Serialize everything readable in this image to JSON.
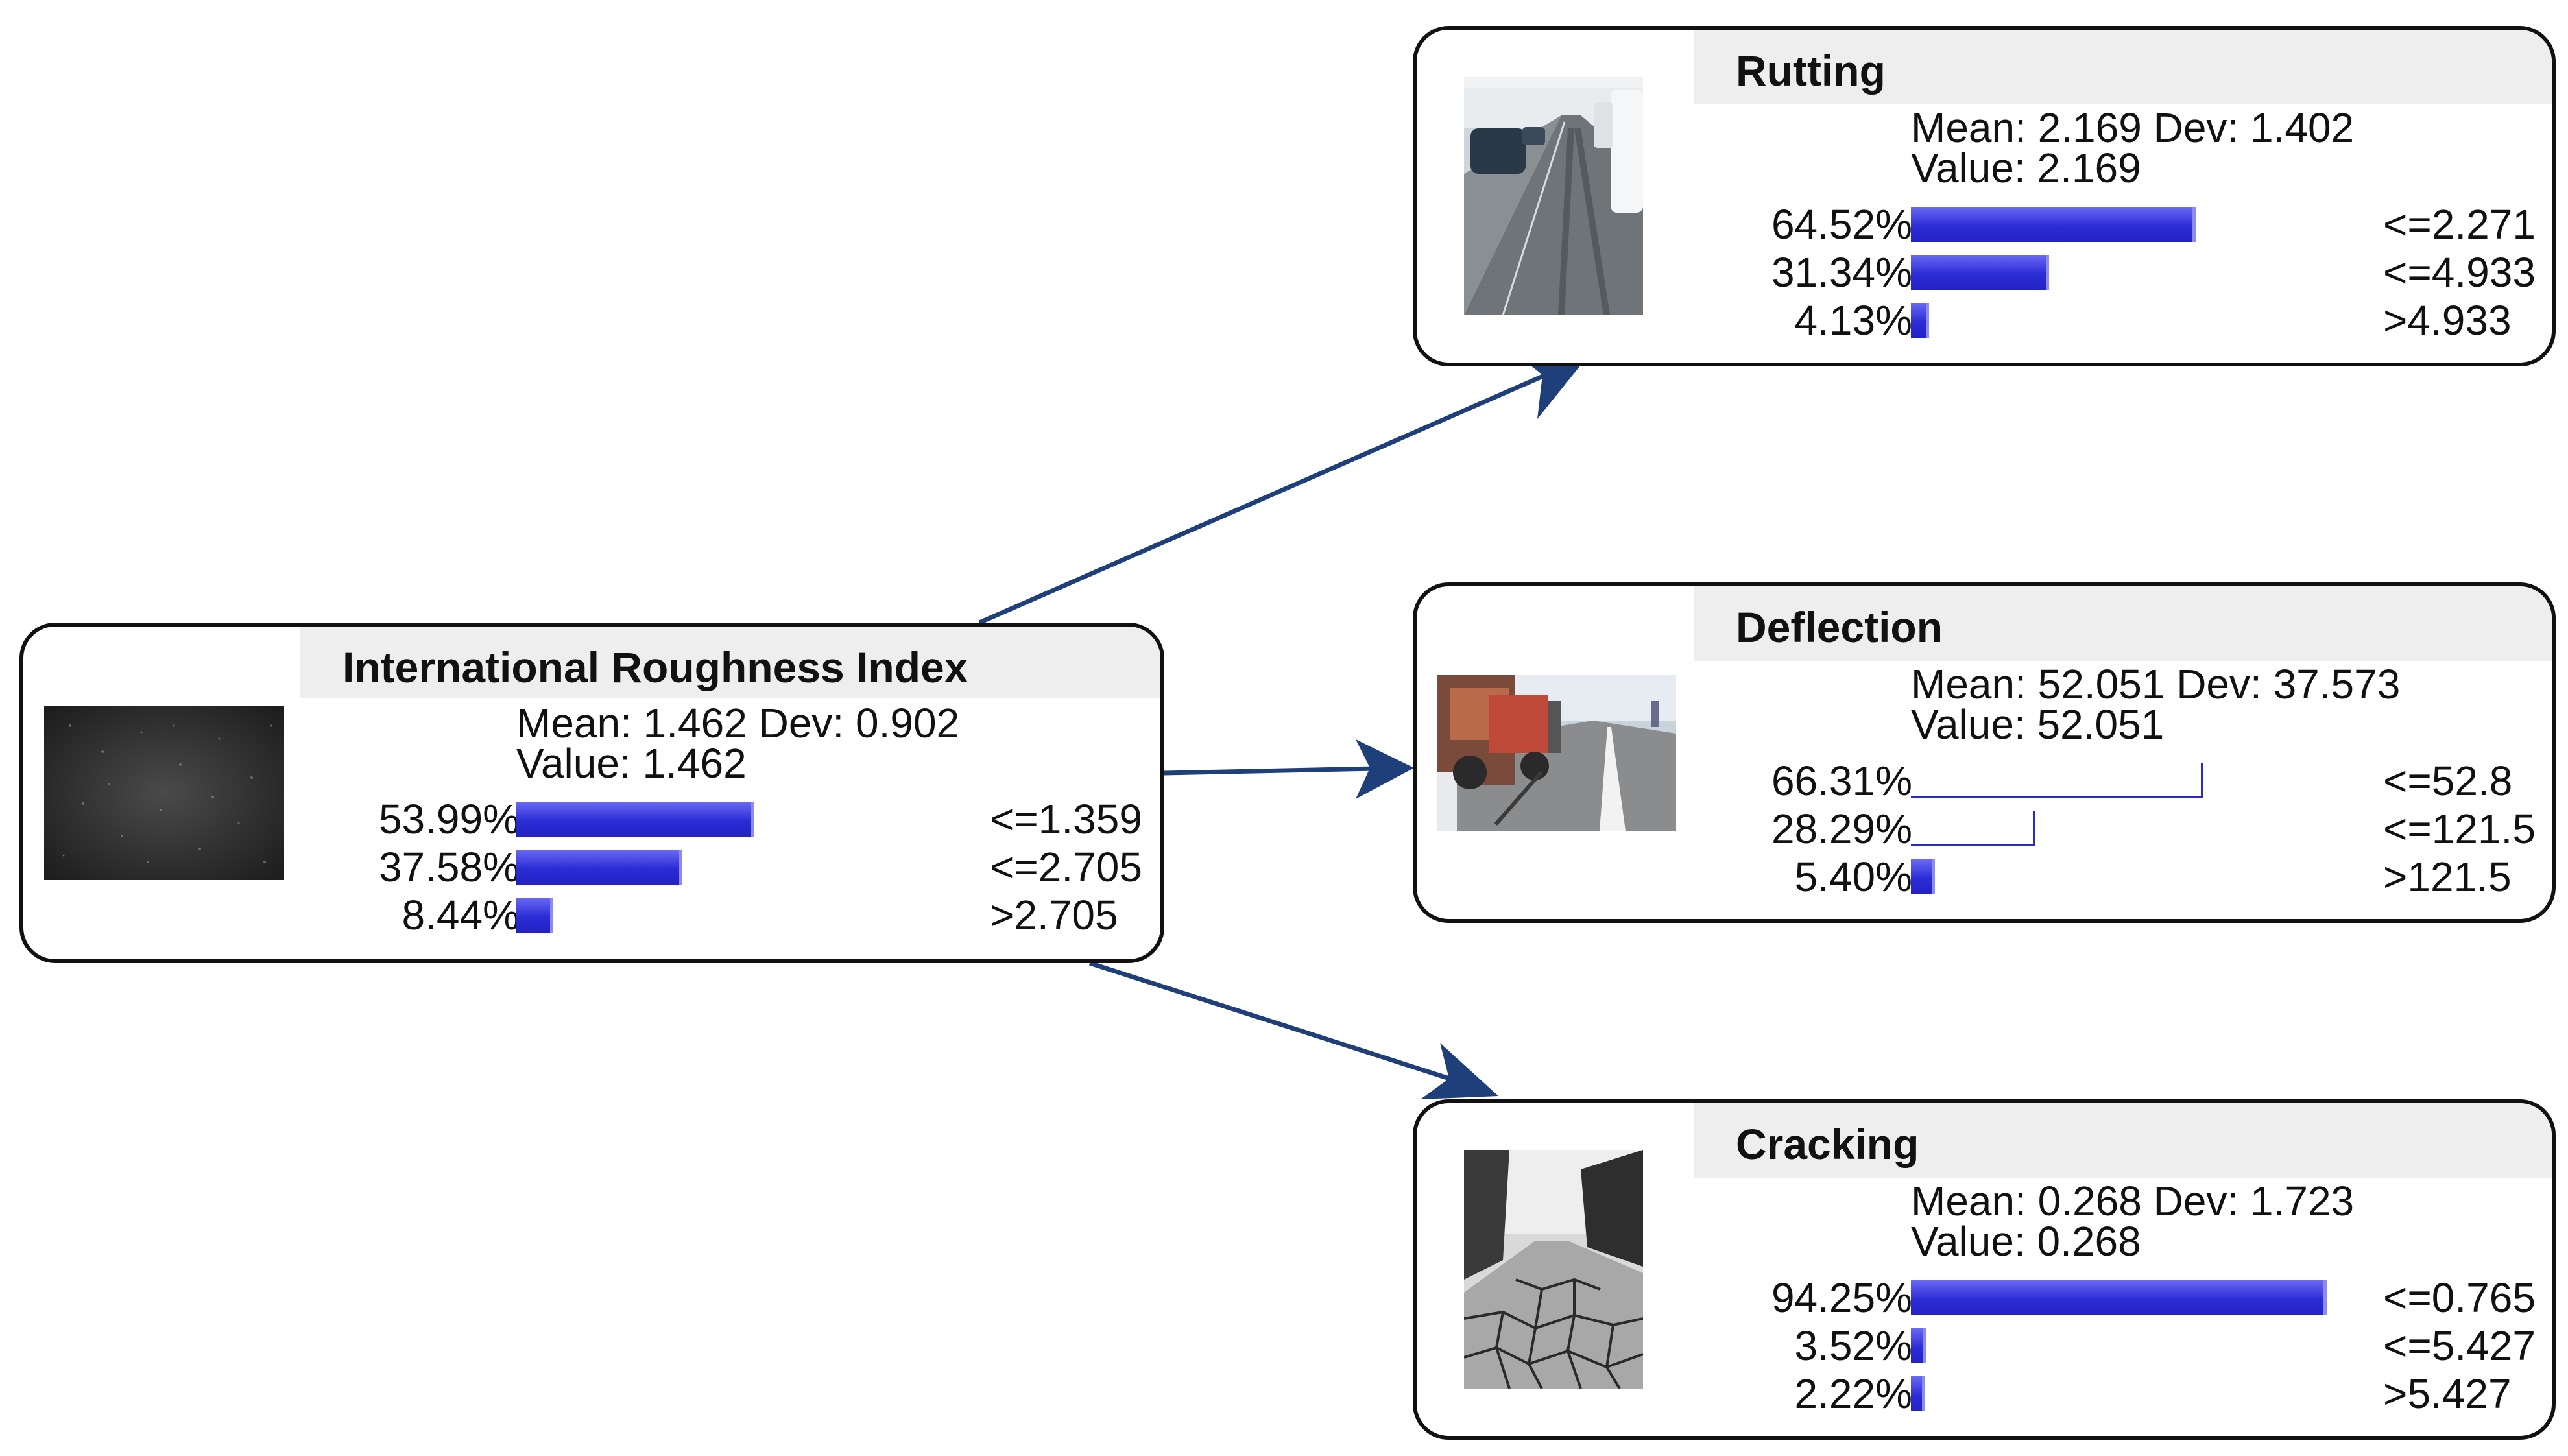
{
  "nodes": {
    "iri": {
      "title": "International Roughness Index",
      "mean_line": "Mean: 1.462 Dev: 0.902",
      "value_line": "Value: 1.462",
      "rows": [
        {
          "pct_label": "53.99%",
          "pct": 53.99,
          "bin": "<=1.359"
        },
        {
          "pct_label": "37.58%",
          "pct": 37.58,
          "bin": "<=2.705"
        },
        {
          "pct_label": "8.44%",
          "pct": 8.44,
          "bin": ">2.705"
        }
      ],
      "image_icon": "asphalt-texture-photo"
    },
    "rutting": {
      "title": "Rutting",
      "mean_line": "Mean: 2.169 Dev: 1.402",
      "value_line": "Value: 2.169",
      "rows": [
        {
          "pct_label": "64.52%",
          "pct": 64.52,
          "bin": "<=2.271"
        },
        {
          "pct_label": "31.34%",
          "pct": 31.34,
          "bin": "<=4.933"
        },
        {
          "pct_label": "4.13%",
          "pct": 4.13,
          "bin": ">4.933"
        }
      ],
      "image_icon": "rutted-road-photo"
    },
    "deflection": {
      "title": "Deflection",
      "mean_line": "Mean: 52.051 Dev: 37.573",
      "value_line": "Value: 52.051",
      "rows": [
        {
          "pct_label": "66.31%",
          "pct": 66.31,
          "bin": "<=52.8",
          "hollow": true
        },
        {
          "pct_label": "28.29%",
          "pct": 28.29,
          "bin": "<=121.5",
          "hollow": true
        },
        {
          "pct_label": "5.40%",
          "pct": 5.4,
          "bin": ">121.5"
        }
      ],
      "image_icon": "deflection-test-truck-photo"
    },
    "cracking": {
      "title": "Cracking",
      "mean_line": "Mean: 0.268 Dev: 1.723",
      "value_line": "Value: 0.268",
      "rows": [
        {
          "pct_label": "94.25%",
          "pct": 94.25,
          "bin": "<=0.765"
        },
        {
          "pct_label": "3.52%",
          "pct": 3.52,
          "bin": "<=5.427"
        },
        {
          "pct_label": "2.22%",
          "pct": 2.22,
          "bin": ">5.427"
        }
      ],
      "image_icon": "cracked-pavement-photo"
    }
  },
  "edges": [
    {
      "from": "iri",
      "to": "rutting"
    },
    {
      "from": "iri",
      "to": "deflection"
    },
    {
      "from": "iri",
      "to": "cracking"
    }
  ],
  "colors": {
    "bar": "#2a2ad0",
    "arrow": "#1f3f7a",
    "header": "#eeeeee",
    "border": "#111111"
  }
}
